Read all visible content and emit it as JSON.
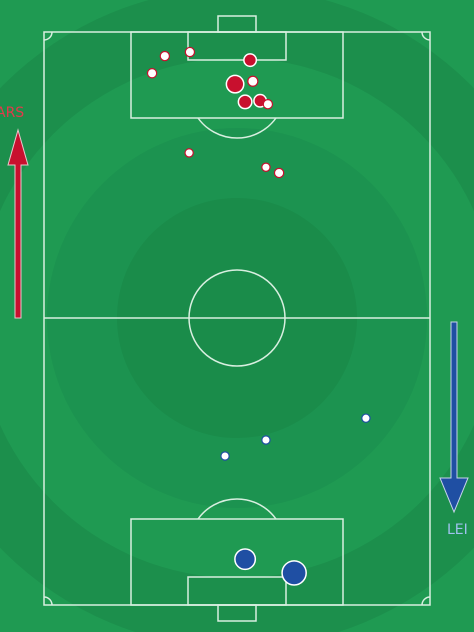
{
  "chart_data": {
    "type": "shotmap",
    "xlim": [
      0,
      100
    ],
    "ylim": [
      0,
      100
    ],
    "series": [
      {
        "name": "ARS",
        "color": "#c8102e",
        "direction": "up",
        "x": [
          31.3,
          37.8,
          28,
          53.4,
          54.1,
          49.5,
          52.1,
          56,
          58,
          37.6,
          57.5,
          60.9
        ],
        "values": [
          4.2,
          3.5,
          7.2,
          4.9,
          8.6,
          9.1,
          12.2,
          12,
          12.6,
          21.1,
          23.6,
          24.6
        ],
        "xg": [
          0.03,
          0.03,
          0.03,
          0.08,
          0.04,
          0.2,
          0.1,
          0.08,
          0.03,
          0.02,
          0.02,
          0.03
        ]
      },
      {
        "name": "LEI",
        "color": "#1f4fa3",
        "direction": "down",
        "x": [
          83.4,
          57.5,
          46.9,
          52.1,
          64.8
        ],
        "values": [
          67.4,
          71.2,
          74,
          92,
          94.4
        ],
        "xg": [
          0.02,
          0.02,
          0.02,
          0.3,
          0.45
        ]
      }
    ]
  }
}
